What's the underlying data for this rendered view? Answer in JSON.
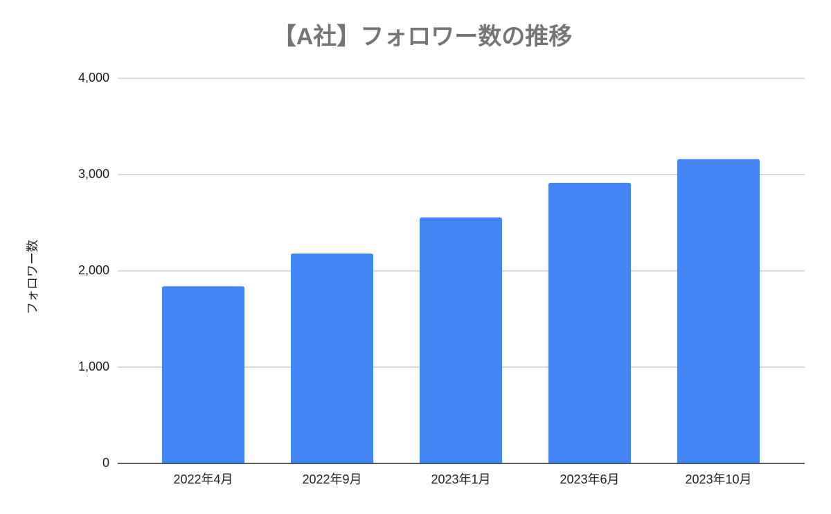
{
  "chart_data": {
    "type": "bar",
    "title": "【A社】フォロワー数の推移",
    "y_label": "フォロワー数",
    "categories": [
      "2022年4月",
      "2022年9月",
      "2023年1月",
      "2023年6月",
      "2023年10月"
    ],
    "values": [
      1840,
      2180,
      2555,
      2915,
      3160
    ],
    "color": "#4285f4",
    "ylim": [
      0,
      4000
    ],
    "yticks": [
      0,
      {
        "value": 1000,
        "label": "1,000"
      },
      {
        "value": 2000,
        "label": "2,000"
      },
      {
        "value": 3000,
        "label": "3,000"
      },
      {
        "value": 4000,
        "label": "4,000"
      }
    ],
    "grid": true
  }
}
